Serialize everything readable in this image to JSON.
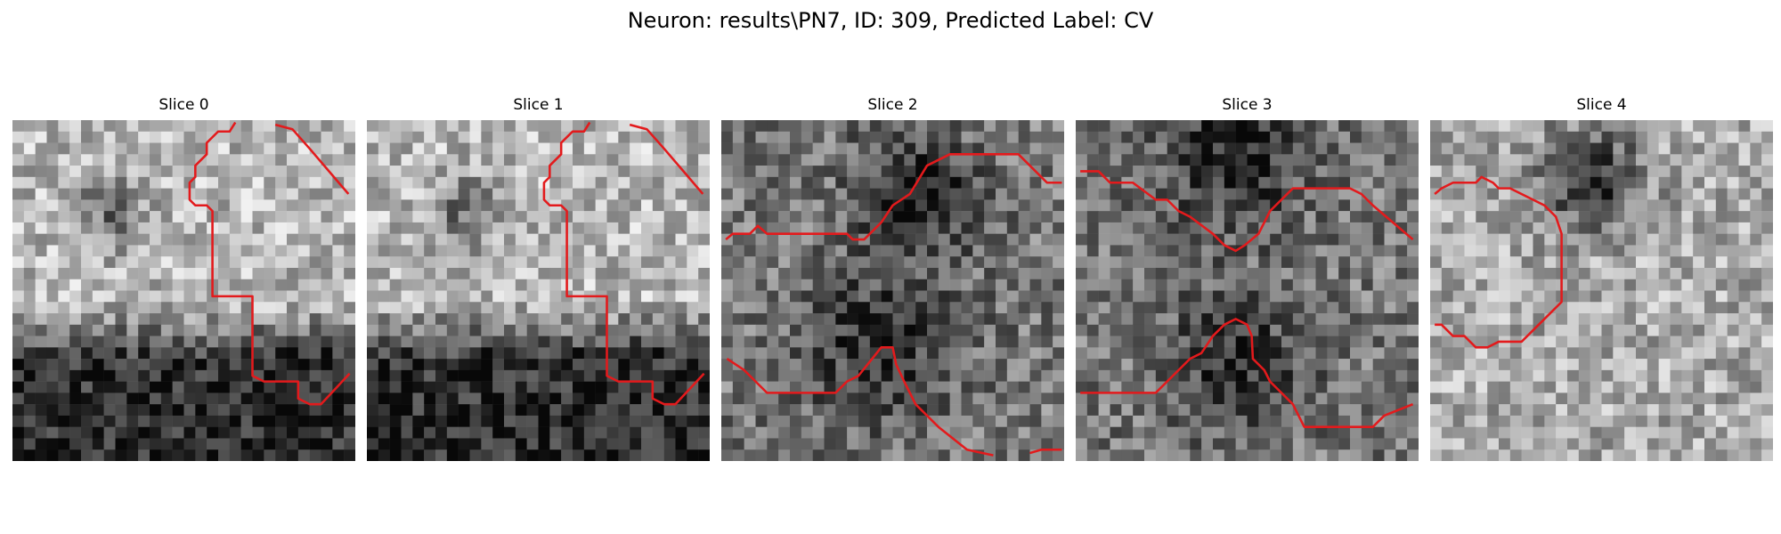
{
  "figure": {
    "title": "Neuron: results\\PN7, ID: 309, Predicted Label: CV"
  },
  "panels": [
    {
      "title": "Slice 0"
    },
    {
      "title": "Slice 1"
    },
    {
      "title": "Slice 2"
    },
    {
      "title": "Slice 3"
    },
    {
      "title": "Slice 4"
    }
  ],
  "colors": {
    "contour": "#e31a1c"
  }
}
